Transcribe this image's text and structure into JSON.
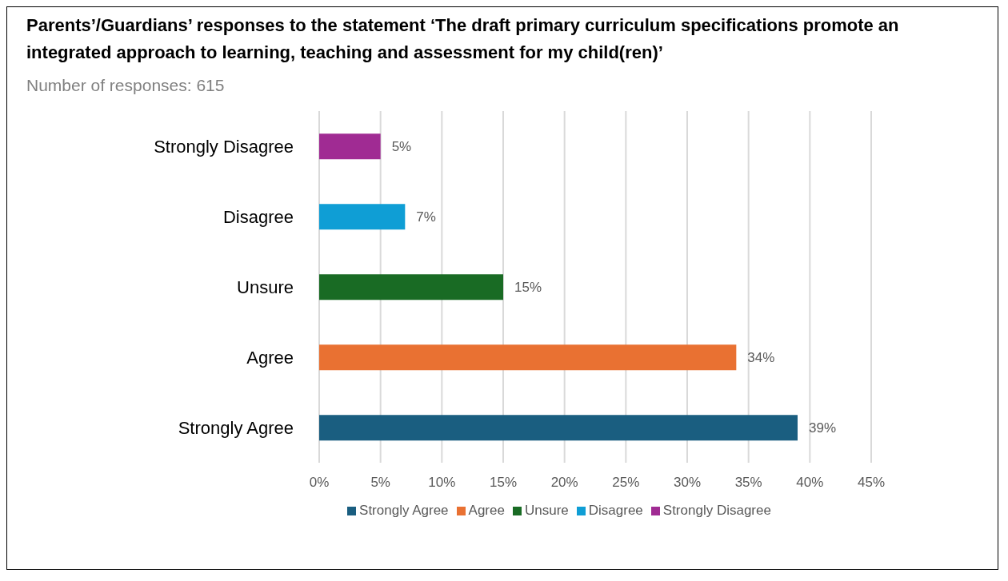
{
  "chart_data": {
    "type": "bar",
    "orientation": "horizontal",
    "stacked": true,
    "title": "Parents’/Guardians’ responses to the statement ‘The draft primary curriculum specifications promote an integrated approach to learning, teaching and assessment for my child(ren)’",
    "subtitle": "Number of responses: 615",
    "categories": [
      "Strongly Disagree",
      "Disagree",
      "Unsure",
      "Agree",
      "Strongly Agree"
    ],
    "series": [
      {
        "name": "Strongly Agree",
        "color": "#1a5e80",
        "values": [
          null,
          null,
          null,
          null,
          39
        ],
        "value_labels": [
          null,
          null,
          null,
          null,
          "39%"
        ]
      },
      {
        "name": "Agree",
        "color": "#e97132",
        "values": [
          null,
          null,
          null,
          34,
          null
        ],
        "value_labels": [
          null,
          null,
          null,
          "34%",
          null
        ]
      },
      {
        "name": "Unsure",
        "color": "#196b24",
        "values": [
          null,
          null,
          15,
          null,
          null
        ],
        "value_labels": [
          null,
          null,
          "15%",
          null,
          null
        ]
      },
      {
        "name": "Disagree",
        "color": "#0f9ed5",
        "values": [
          null,
          7,
          null,
          null,
          null
        ],
        "value_labels": [
          null,
          "7%",
          null,
          null,
          null
        ]
      },
      {
        "name": "Strongly Disagree",
        "color": "#a02b93",
        "values": [
          5,
          null,
          null,
          null,
          null
        ],
        "value_labels": [
          "5%",
          null,
          null,
          null,
          null
        ]
      }
    ],
    "xlim": [
      0,
      45
    ],
    "xticks": [
      {
        "value": 0,
        "label": "0%"
      },
      {
        "value": 5,
        "label": "5%"
      },
      {
        "value": 10,
        "label": "10%"
      },
      {
        "value": 15,
        "label": "15%"
      },
      {
        "value": 20,
        "label": "20%"
      },
      {
        "value": 25,
        "label": "25%"
      },
      {
        "value": 30,
        "label": "30%"
      },
      {
        "value": 35,
        "label": "35%"
      },
      {
        "value": 40,
        "label": "40%"
      },
      {
        "value": 45,
        "label": "45%"
      }
    ],
    "grid": "x",
    "legend": "bottom"
  }
}
